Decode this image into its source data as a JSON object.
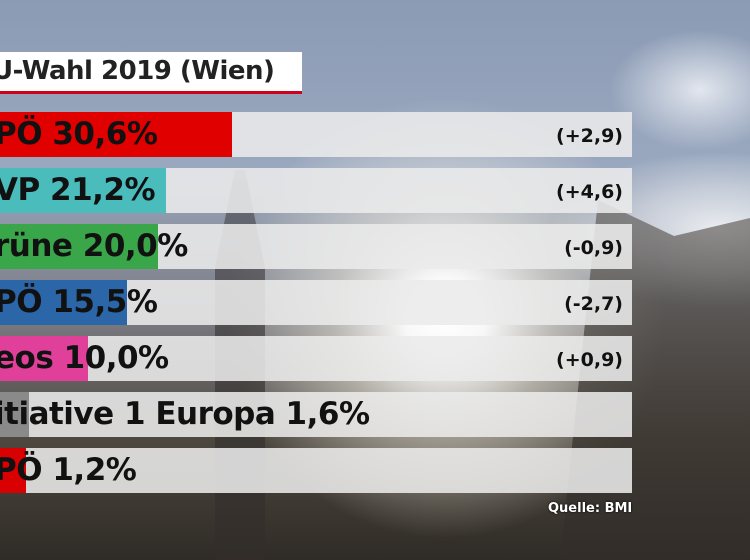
{
  "chart_data": {
    "type": "bar",
    "orientation": "horizontal",
    "title": "U-Wahl 2019  (Wien)",
    "unit": "%",
    "bars": [
      {
        "label": "PÖ 30,6%",
        "value": 30.6,
        "change": "(+2,9)",
        "color": "#e00000"
      },
      {
        "label": "VP 21,2%",
        "value": 21.2,
        "change": "(+4,6)",
        "color": "#4bbcbc"
      },
      {
        "label": "rüne 20,0%",
        "value": 20.0,
        "change": "(-0,9)",
        "color": "#3aa64a"
      },
      {
        "label": "PÖ 15,5%",
        "value": 15.5,
        "change": "(-2,7)",
        "color": "#2a66a8"
      },
      {
        "label": "eos 10,0%",
        "value": 10.0,
        "change": "(+0,9)",
        "color": "#e0409a"
      },
      {
        "label": "itiative 1 Europa 1,6%",
        "value": 1.6,
        "change": "",
        "color": "#8a8a8a"
      },
      {
        "label": "PÖ 1,2%",
        "value": 1.2,
        "change": "",
        "color": "#d80000"
      }
    ],
    "source": "Quelle: BMI"
  }
}
